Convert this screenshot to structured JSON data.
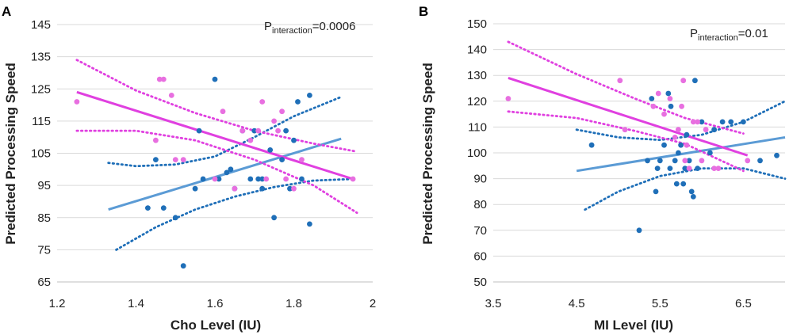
{
  "figure": {
    "panel_labels": [
      "A",
      "B"
    ]
  },
  "colors": {
    "blue": "#1f6fb8",
    "blue_line": "#5b9bd5",
    "magenta": "#e86fe0",
    "magenta_line": "#e040e0",
    "grid": "#d9d9d9"
  },
  "chart_data": [
    {
      "type": "scatter",
      "panel": "A",
      "xlabel": "Cho Level (IU)",
      "ylabel": "Predicted Processing Speed",
      "xlim": [
        1.2,
        2
      ],
      "ylim": [
        65,
        145
      ],
      "xticks": [
        "1.2",
        "1.4",
        "1.6",
        "1.8",
        "2"
      ],
      "yticks": [
        "65",
        "75",
        "85",
        "95",
        "105",
        "115",
        "125",
        "135",
        "145"
      ],
      "grid": "horizontal",
      "annotation": {
        "prefix": "P",
        "subscript": "interaction",
        "value": "=0.0006"
      },
      "series": [
        {
          "name": "blue",
          "points": [
            [
              1.43,
              88
            ],
            [
              1.45,
              103
            ],
            [
              1.47,
              88
            ],
            [
              1.5,
              85
            ],
            [
              1.52,
              70
            ],
            [
              1.55,
              94
            ],
            [
              1.56,
              112
            ],
            [
              1.57,
              97
            ],
            [
              1.6,
              128
            ],
            [
              1.61,
              97
            ],
            [
              1.63,
              99
            ],
            [
              1.64,
              100
            ],
            [
              1.65,
              94
            ],
            [
              1.67,
              112
            ],
            [
              1.69,
              97
            ],
            [
              1.7,
              112
            ],
            [
              1.71,
              97
            ],
            [
              1.72,
              97
            ],
            [
              1.72,
              94
            ],
            [
              1.74,
              106
            ],
            [
              1.75,
              85
            ],
            [
              1.77,
              103
            ],
            [
              1.78,
              112
            ],
            [
              1.79,
              94
            ],
            [
              1.8,
              109
            ],
            [
              1.81,
              121
            ],
            [
              1.82,
              97
            ],
            [
              1.84,
              123
            ],
            [
              1.84,
              83
            ]
          ],
          "fit": [
            [
              1.33,
              87.5
            ],
            [
              1.92,
              109.5
            ]
          ],
          "ci_upper": [
            [
              1.33,
              102
            ],
            [
              1.4,
              101
            ],
            [
              1.5,
              101.5
            ],
            [
              1.6,
              104
            ],
            [
              1.7,
              110
            ],
            [
              1.8,
              116.5
            ],
            [
              1.92,
              122.5
            ]
          ],
          "ci_lower": [
            [
              1.35,
              75
            ],
            [
              1.45,
              82
            ],
            [
              1.55,
              87.5
            ],
            [
              1.65,
              91.5
            ],
            [
              1.75,
              94.5
            ],
            [
              1.85,
              96.5
            ],
            [
              1.95,
              97
            ]
          ]
        },
        {
          "name": "magenta",
          "points": [
            [
              1.25,
              121
            ],
            [
              1.45,
              109
            ],
            [
              1.46,
              128
            ],
            [
              1.47,
              128
            ],
            [
              1.49,
              123
            ],
            [
              1.5,
              103
            ],
            [
              1.52,
              103
            ],
            [
              1.6,
              97
            ],
            [
              1.62,
              118
            ],
            [
              1.65,
              94
            ],
            [
              1.67,
              112
            ],
            [
              1.69,
              109
            ],
            [
              1.71,
              112
            ],
            [
              1.72,
              121
            ],
            [
              1.73,
              97
            ],
            [
              1.75,
              115
            ],
            [
              1.76,
              112
            ],
            [
              1.77,
              118
            ],
            [
              1.78,
              97
            ],
            [
              1.8,
              94
            ],
            [
              1.82,
              103
            ],
            [
              1.95,
              97
            ]
          ],
          "fit": [
            [
              1.25,
              124
            ],
            [
              1.95,
              97
            ]
          ],
          "ci_upper": [
            [
              1.25,
              134
            ],
            [
              1.4,
              124.5
            ],
            [
              1.55,
              117.5
            ],
            [
              1.7,
              112
            ],
            [
              1.85,
              108
            ],
            [
              1.96,
              105.5
            ]
          ],
          "ci_lower": [
            [
              1.25,
              112
            ],
            [
              1.4,
              112
            ],
            [
              1.55,
              109
            ],
            [
              1.7,
              103
            ],
            [
              1.85,
              95
            ],
            [
              1.96,
              86.5
            ]
          ]
        }
      ]
    },
    {
      "type": "scatter",
      "panel": "B",
      "xlabel": "MI Level (IU)",
      "ylabel": "Predicted Processing Speed",
      "xlim": [
        3.5,
        7
      ],
      "ylim": [
        50,
        150
      ],
      "xticks": [
        "3.5",
        "4.5",
        "5.5",
        "6.5"
      ],
      "yticks": [
        "50",
        "60",
        "70",
        "80",
        "90",
        "100",
        "110",
        "120",
        "130",
        "140",
        "150"
      ],
      "grid": "horizontal",
      "annotation": {
        "prefix": "P",
        "subscript": "interaction",
        "value": "=0.01"
      },
      "series": [
        {
          "name": "blue",
          "points": [
            [
              4.68,
              103
            ],
            [
              5.25,
              70
            ],
            [
              5.35,
              97
            ],
            [
              5.4,
              121
            ],
            [
              5.45,
              85
            ],
            [
              5.47,
              94
            ],
            [
              5.5,
              97
            ],
            [
              5.55,
              103
            ],
            [
              5.6,
              123
            ],
            [
              5.62,
              94
            ],
            [
              5.63,
              118
            ],
            [
              5.68,
              97
            ],
            [
              5.7,
              88
            ],
            [
              5.72,
              100
            ],
            [
              5.75,
              103
            ],
            [
              5.78,
              88
            ],
            [
              5.8,
              94
            ],
            [
              5.82,
              107
            ],
            [
              5.85,
              97
            ],
            [
              5.88,
              85
            ],
            [
              5.9,
              83
            ],
            [
              5.92,
              128
            ],
            [
              5.95,
              94
            ],
            [
              6.0,
              112
            ],
            [
              6.1,
              100
            ],
            [
              6.15,
              109
            ],
            [
              6.25,
              112
            ],
            [
              6.35,
              112
            ],
            [
              6.5,
              112
            ],
            [
              6.7,
              97
            ],
            [
              6.9,
              99
            ]
          ],
          "fit": [
            [
              4.5,
              93
            ],
            [
              7.0,
              106
            ]
          ],
          "ci_upper": [
            [
              4.5,
              109
            ],
            [
              5.0,
              106
            ],
            [
              5.5,
              105
            ],
            [
              6.0,
              107
            ],
            [
              6.5,
              112
            ],
            [
              7.0,
              120
            ]
          ],
          "ci_lower": [
            [
              4.6,
              78
            ],
            [
              5.0,
              85
            ],
            [
              5.5,
              91
            ],
            [
              6.0,
              94
            ],
            [
              6.5,
              94
            ],
            [
              7.0,
              90
            ]
          ]
        },
        {
          "name": "magenta",
          "points": [
            [
              3.68,
              121
            ],
            [
              5.02,
              128
            ],
            [
              5.08,
              109
            ],
            [
              5.42,
              118
            ],
            [
              5.48,
              123
            ],
            [
              5.55,
              115
            ],
            [
              5.62,
              121
            ],
            [
              5.68,
              106
            ],
            [
              5.72,
              109
            ],
            [
              5.76,
              118
            ],
            [
              5.78,
              128
            ],
            [
              5.8,
              97
            ],
            [
              5.82,
              103
            ],
            [
              5.85,
              94
            ],
            [
              5.9,
              112
            ],
            [
              5.95,
              112
            ],
            [
              6.0,
              97
            ],
            [
              6.05,
              109
            ],
            [
              6.15,
              94
            ],
            [
              6.2,
              94
            ],
            [
              6.55,
              97
            ]
          ],
          "fit": [
            [
              3.68,
              129
            ],
            [
              6.55,
              99
            ]
          ],
          "ci_upper": [
            [
              3.68,
              143
            ],
            [
              4.5,
              130.5
            ],
            [
              5.2,
              121
            ],
            [
              5.8,
              113.5
            ],
            [
              6.5,
              107.5
            ]
          ],
          "ci_lower": [
            [
              3.68,
              116
            ],
            [
              4.5,
              113.5
            ],
            [
              5.2,
              108.5
            ],
            [
              5.8,
              103.5
            ],
            [
              6.5,
              93
            ]
          ]
        }
      ]
    }
  ]
}
